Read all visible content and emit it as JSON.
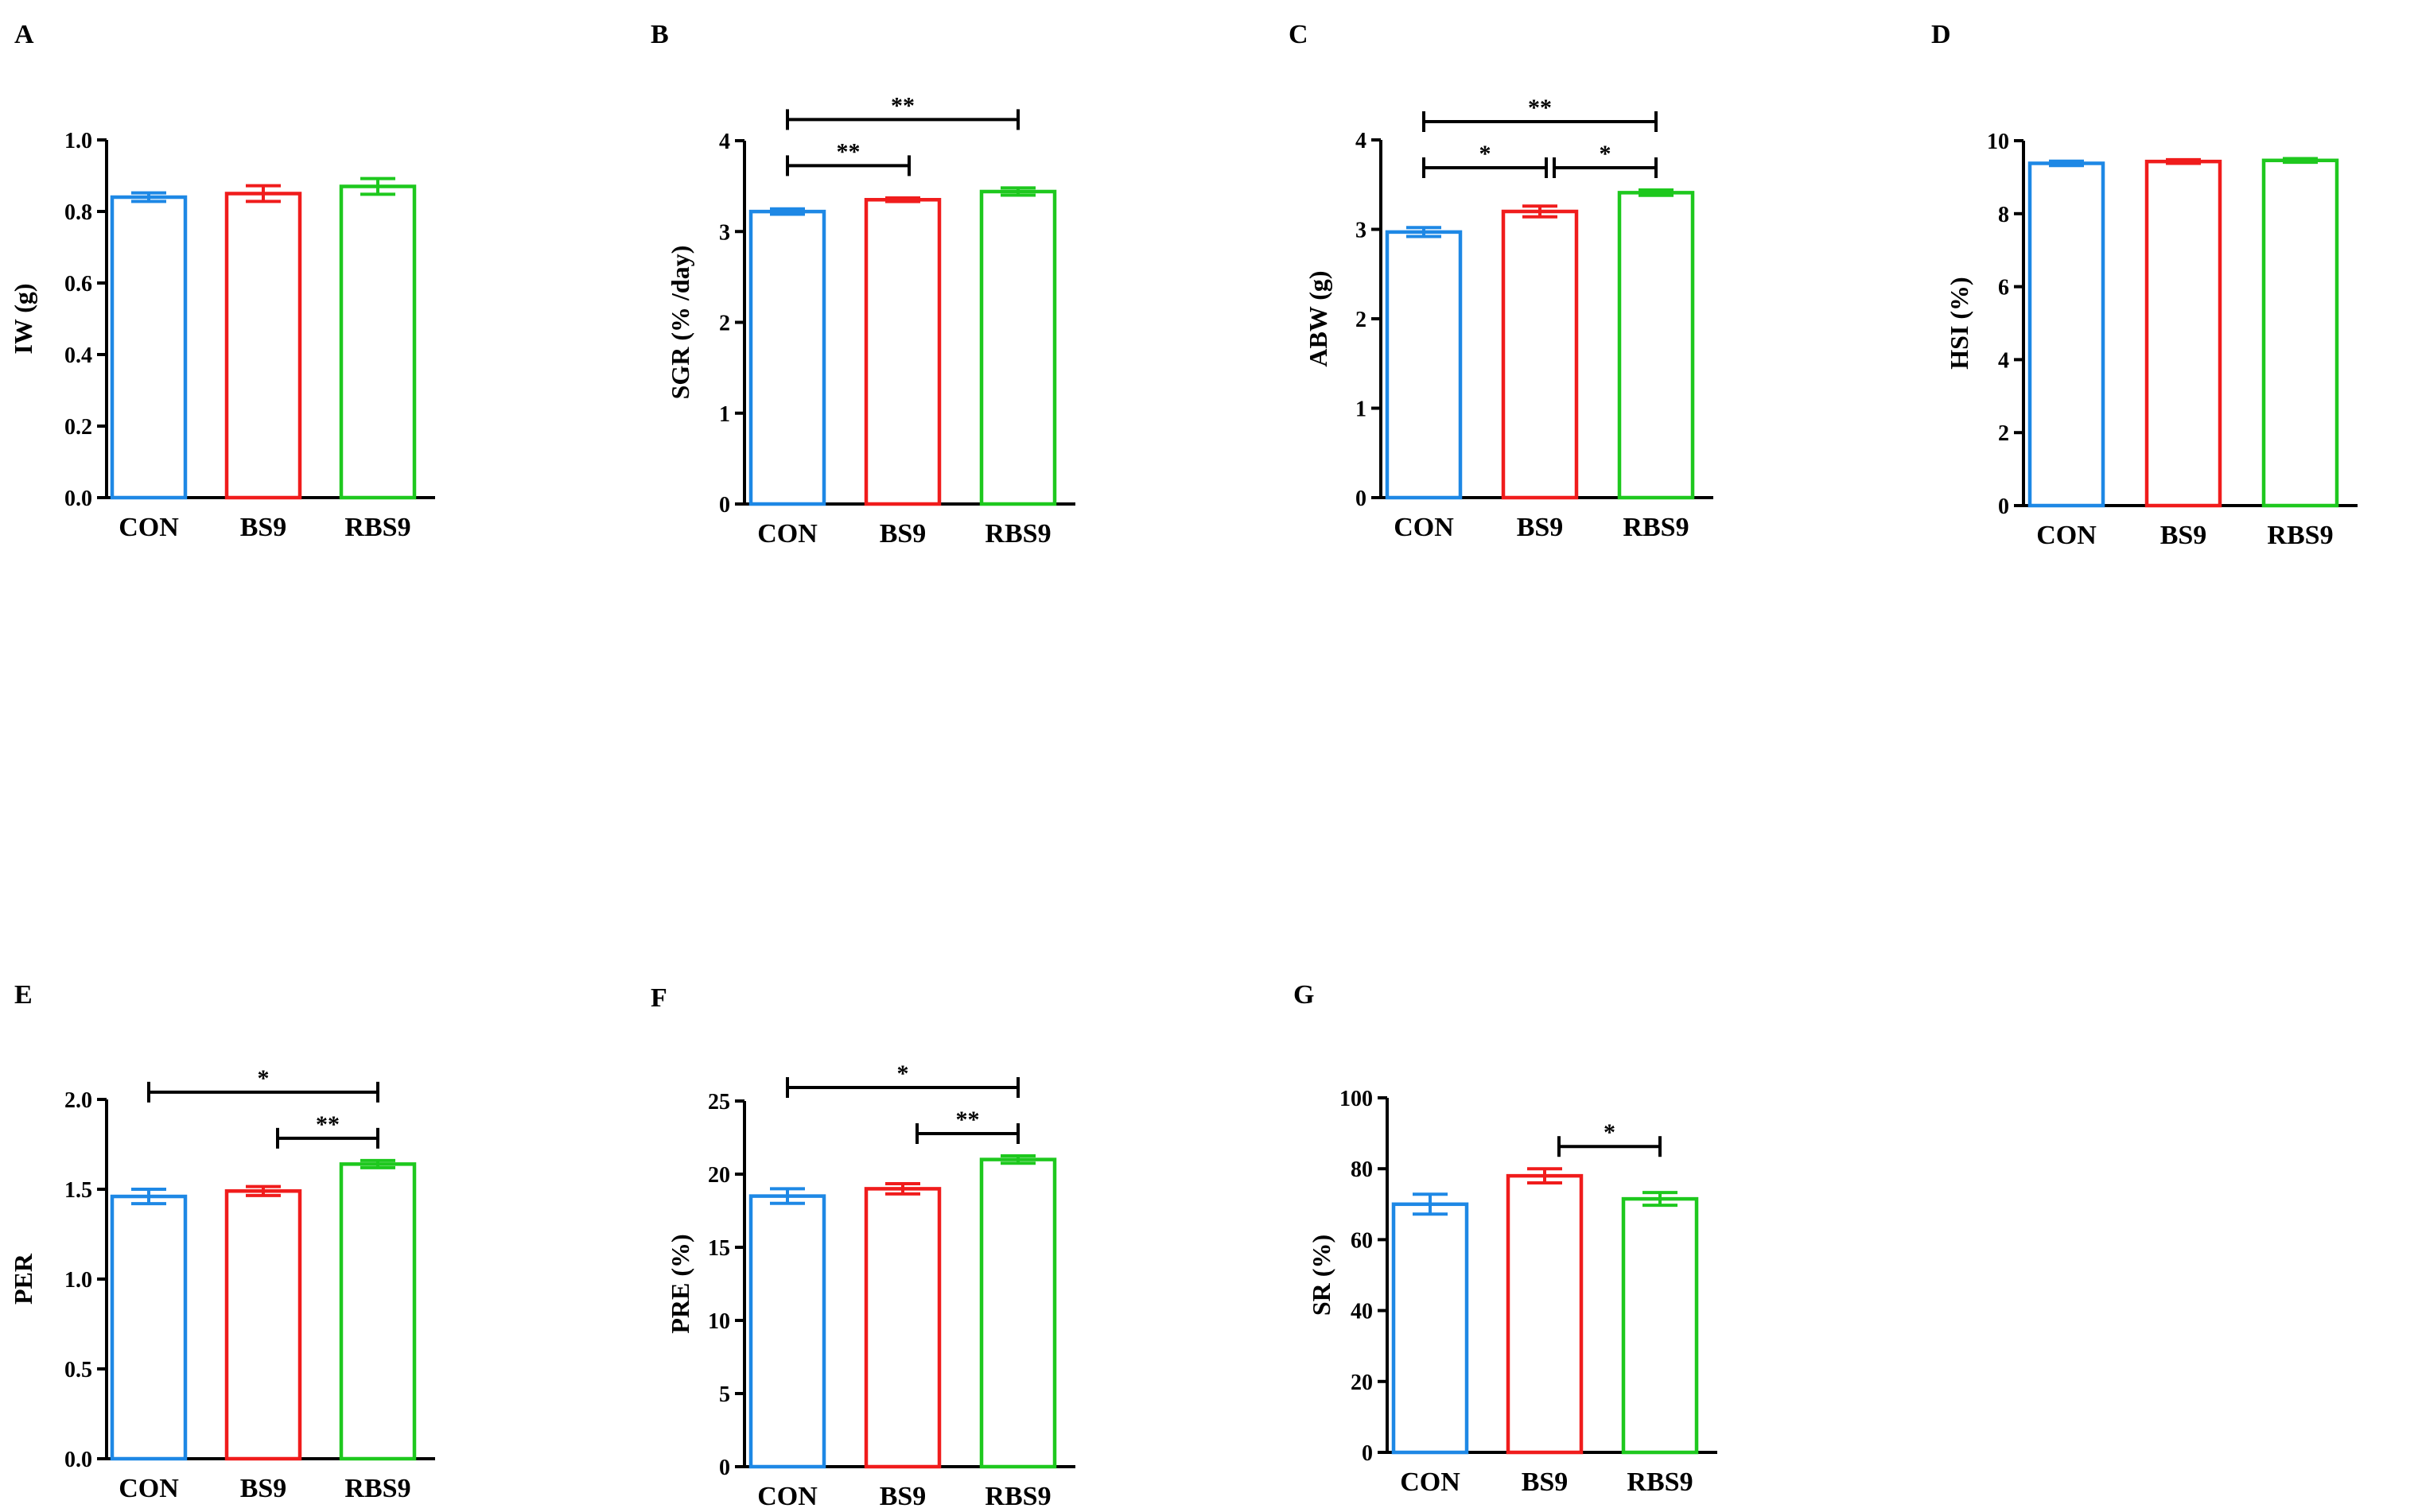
{
  "colors": {
    "CON": "#1e88e5",
    "BS9": "#f01c1c",
    "RBS9": "#1ec81e",
    "axis": "#000000"
  },
  "chart_data": [
    {
      "panel": "A",
      "type": "bar",
      "ylabel": "IW (g)",
      "categories": [
        "CON",
        "BS9",
        "RBS9"
      ],
      "values": [
        0.84,
        0.85,
        0.87
      ],
      "errors": [
        0.012,
        0.022,
        0.022
      ],
      "ylim": [
        0,
        1.0
      ],
      "yticks": [
        "0.0",
        "0.2",
        "0.4",
        "0.6",
        "0.8",
        "1.0"
      ],
      "significance": []
    },
    {
      "panel": "B",
      "type": "bar",
      "ylabel": "SGR (% /day)",
      "categories": [
        "CON",
        "BS9",
        "RBS9"
      ],
      "values": [
        3.22,
        3.35,
        3.44
      ],
      "errors": [
        0.03,
        0.02,
        0.04
      ],
      "ylim": [
        0,
        4
      ],
      "yticks": [
        "0",
        "1",
        "2",
        "3",
        "4"
      ],
      "significance": [
        {
          "from": 0,
          "to": 1,
          "label": "**"
        },
        {
          "from": 0,
          "to": 2,
          "label": "**"
        }
      ]
    },
    {
      "panel": "C",
      "type": "bar",
      "ylabel": "ABW (g)",
      "categories": [
        "CON",
        "BS9",
        "RBS9"
      ],
      "values": [
        2.97,
        3.2,
        3.41
      ],
      "errors": [
        0.05,
        0.06,
        0.03
      ],
      "ylim": [
        0,
        4
      ],
      "yticks": [
        "0",
        "1",
        "2",
        "3",
        "4"
      ],
      "significance": [
        {
          "from": 0,
          "to": 1,
          "label": "*"
        },
        {
          "from": 1,
          "to": 2,
          "label": "*"
        },
        {
          "from": 0,
          "to": 2,
          "label": "**"
        }
      ]
    },
    {
      "panel": "D",
      "type": "bar",
      "ylabel": "HSI (%)",
      "categories": [
        "CON",
        "BS9",
        "RBS9"
      ],
      "values": [
        9.38,
        9.43,
        9.46
      ],
      "errors": [
        0.06,
        0.05,
        0.05
      ],
      "ylim": [
        0,
        10
      ],
      "yticks": [
        "0",
        "2",
        "4",
        "6",
        "8",
        "10"
      ],
      "significance": []
    },
    {
      "panel": "E",
      "type": "bar",
      "ylabel": "PER",
      "categories": [
        "CON",
        "BS9",
        "RBS9"
      ],
      "values": [
        1.46,
        1.49,
        1.64
      ],
      "errors": [
        0.04,
        0.025,
        0.02
      ],
      "ylim": [
        0,
        2.0
      ],
      "yticks": [
        "0.0",
        "0.5",
        "1.0",
        "1.5",
        "2.0"
      ],
      "significance": [
        {
          "from": 1,
          "to": 2,
          "label": "**"
        },
        {
          "from": 0,
          "to": 2,
          "label": "*"
        }
      ]
    },
    {
      "panel": "F",
      "type": "bar",
      "ylabel": "PRE (%)",
      "categories": [
        "CON",
        "BS9",
        "RBS9"
      ],
      "values": [
        18.5,
        19.0,
        21.0
      ],
      "errors": [
        0.5,
        0.35,
        0.25
      ],
      "ylim": [
        0,
        25
      ],
      "yticks": [
        "0",
        "5",
        "10",
        "15",
        "20",
        "25"
      ],
      "significance": [
        {
          "from": 1,
          "to": 2,
          "label": "**"
        },
        {
          "from": 0,
          "to": 2,
          "label": "*"
        }
      ]
    },
    {
      "panel": "G",
      "type": "bar",
      "ylabel": "SR (%)",
      "categories": [
        "CON",
        "BS9",
        "RBS9"
      ],
      "values": [
        70.0,
        78.0,
        71.5
      ],
      "errors": [
        2.8,
        2.0,
        1.8
      ],
      "ylim": [
        0,
        100
      ],
      "yticks": [
        "0",
        "20",
        "40",
        "60",
        "80",
        "100"
      ],
      "significance": [
        {
          "from": 1,
          "to": 2,
          "label": "*"
        }
      ]
    }
  ]
}
